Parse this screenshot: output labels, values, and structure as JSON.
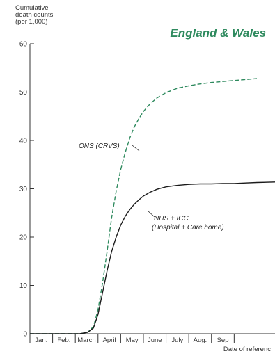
{
  "chart_data": {
    "type": "line",
    "title": "England & Wales",
    "ylabel_lines": [
      "Cumulative",
      "death counts",
      "(per 1,000)"
    ],
    "xlabel": "Date of referenc",
    "ylim": [
      0,
      60
    ],
    "yticks": [
      "0",
      "10",
      "20",
      "30",
      "40",
      "50",
      "60"
    ],
    "xlim": [
      0,
      10.8
    ],
    "x_tick_labels": [
      "Jan.",
      "Feb.",
      "March",
      "April",
      "May",
      "June",
      "July",
      "Aug.",
      "Sep"
    ],
    "grid": false,
    "series": [
      {
        "name": "ONS (CRVS)",
        "style": "dashed",
        "color": "#2e8a5e",
        "x": [
          0,
          2.2,
          2.55,
          2.8,
          3.0,
          3.2,
          3.4,
          3.6,
          3.8,
          4.0,
          4.2,
          4.4,
          4.6,
          4.8,
          5.0,
          5.3,
          5.6,
          6.0,
          6.5,
          7.0,
          7.5,
          8.0,
          8.5,
          9.0,
          9.5,
          10.0
        ],
        "y": [
          0,
          0,
          0.3,
          1.5,
          5.0,
          10.5,
          17.0,
          24.0,
          29.5,
          34.0,
          37.5,
          40.5,
          42.8,
          44.5,
          46.0,
          47.6,
          48.8,
          49.9,
          50.8,
          51.3,
          51.7,
          52.0,
          52.2,
          52.4,
          52.6,
          52.8
        ]
      },
      {
        "name": "NHS + ICC (Hospital + Care home)",
        "style": "solid",
        "color": "#1a1a1a",
        "x": [
          0,
          2.2,
          2.55,
          2.8,
          3.0,
          3.2,
          3.4,
          3.6,
          3.8,
          4.0,
          4.2,
          4.4,
          4.6,
          4.8,
          5.0,
          5.3,
          5.6,
          6.0,
          6.5,
          7.0,
          7.5,
          8.0,
          8.5,
          9.0,
          9.5,
          10.0,
          10.8
        ],
        "y": [
          0,
          0,
          0.3,
          1.2,
          4.0,
          8.5,
          13.0,
          17.0,
          20.0,
          22.5,
          24.3,
          25.7,
          26.8,
          27.7,
          28.5,
          29.3,
          29.9,
          30.4,
          30.7,
          30.9,
          31.0,
          31.0,
          31.1,
          31.1,
          31.2,
          31.3,
          31.4
        ]
      }
    ],
    "annotations": [
      {
        "name": "ons-label",
        "text": "ONS (CRVS)",
        "series": 0
      },
      {
        "name": "nhs-label",
        "lines": [
          "NHS + ICC",
          "(Hospital + Care home)"
        ],
        "series": 1
      }
    ]
  }
}
